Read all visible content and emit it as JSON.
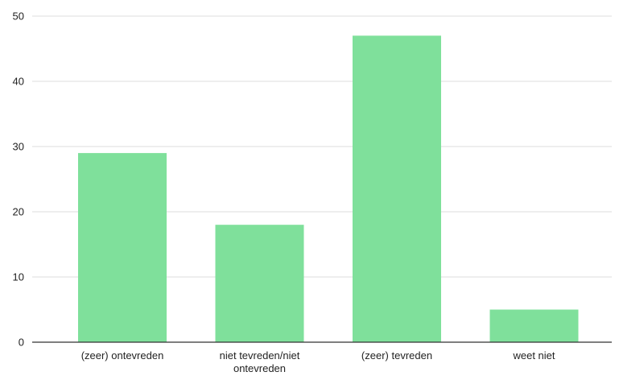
{
  "chart_data": {
    "type": "bar",
    "title": "",
    "xlabel": "",
    "ylabel": "",
    "categories": [
      [
        "(zeer) ontevreden"
      ],
      [
        "niet tevreden/niet",
        "ontevreden"
      ],
      [
        "(zeer) tevreden"
      ],
      [
        "weet niet"
      ]
    ],
    "values": [
      29,
      18,
      47,
      5
    ],
    "ylim": [
      0,
      50
    ],
    "yticks": [
      0,
      10,
      20,
      30,
      40,
      50
    ],
    "grid": true,
    "legend": "none",
    "bar_color": "#7fe09b"
  }
}
